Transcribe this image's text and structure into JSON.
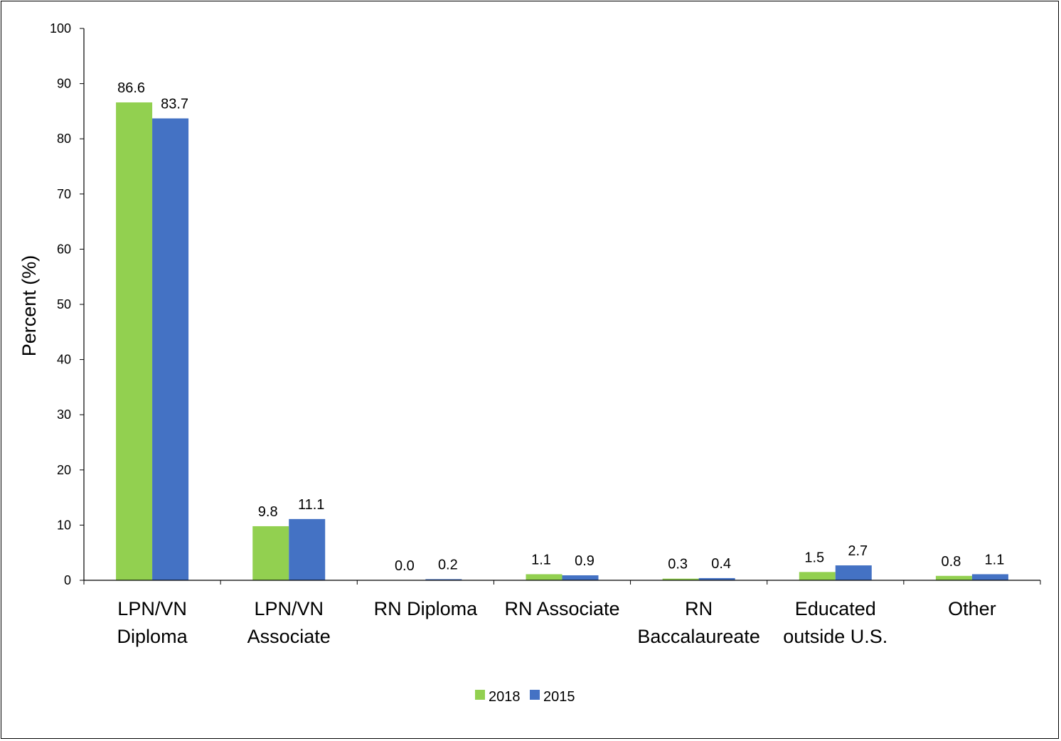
{
  "chart_data": {
    "type": "bar",
    "categories": [
      [
        "LPN/VN",
        "Diploma"
      ],
      [
        "LPN/VN",
        "Associate"
      ],
      [
        "RN Diploma"
      ],
      [
        "RN Associate"
      ],
      [
        "RN",
        "Baccalaureate"
      ],
      [
        "Educated",
        "outside U.S."
      ],
      [
        "Other"
      ]
    ],
    "series": [
      {
        "name": "2018",
        "color": "#92D050",
        "values": [
          86.6,
          9.8,
          0.0,
          1.1,
          0.3,
          1.5,
          0.8
        ]
      },
      {
        "name": "2015",
        "color": "#4472C4",
        "values": [
          83.7,
          11.1,
          0.2,
          0.9,
          0.4,
          2.7,
          1.1
        ]
      }
    ],
    "ylabel": "Percent (%)",
    "xlabel": "",
    "ylim": [
      0,
      100
    ],
    "yticks": [
      0,
      10,
      20,
      30,
      40,
      50,
      60,
      70,
      80,
      90,
      100
    ],
    "grid": false,
    "legend": "bottom-center"
  }
}
